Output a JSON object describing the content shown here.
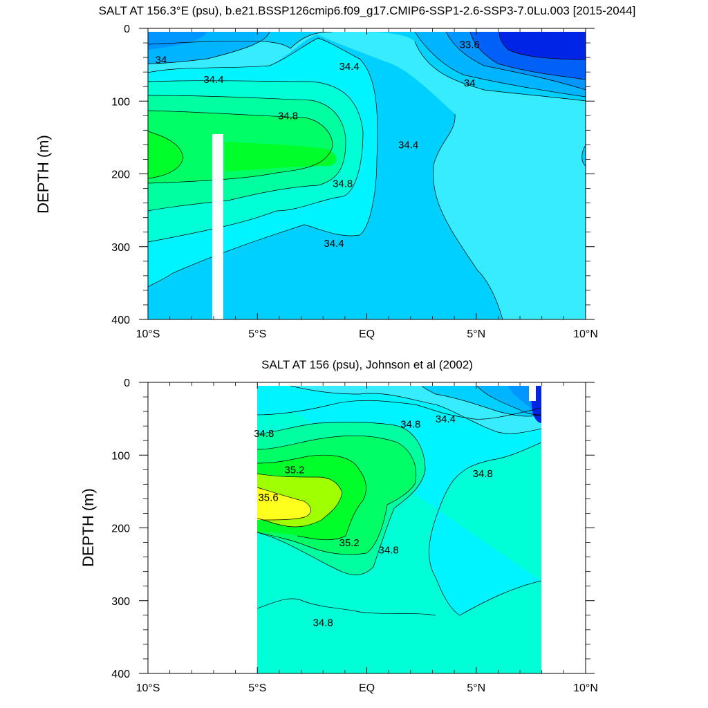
{
  "chart_data": [
    {
      "type": "contour",
      "title": "SALT AT 156.3°E (psu), b.e21.BSSP126cmip6.f09_g17.CMIP6-SSP1-2.6-SSP3-7.0Lu.003 [2015-2044]",
      "ylabel": "DEPTH (m)",
      "xlabel": "",
      "x_ticks": [
        "10°S",
        "5°S",
        "EQ",
        "5°N",
        "10°N"
      ],
      "x_tick_values": [
        -10,
        -5,
        0,
        5,
        10
      ],
      "xlim": [
        -10,
        10
      ],
      "y_ticks": [
        "0",
        "100",
        "200",
        "300",
        "400"
      ],
      "y_tick_values": [
        0,
        100,
        200,
        300,
        400
      ],
      "ylim": [
        0,
        400
      ],
      "y_inverted": true,
      "data_extent_lat": [
        -10,
        10
      ],
      "data_extent_depth": [
        5,
        400
      ],
      "missing_columns": [
        {
          "lat": [
            -7.1,
            -6.6
          ],
          "depth": [
            145,
            400
          ]
        }
      ],
      "contour_labels": [
        {
          "text": "34",
          "lat": -9.4,
          "depth": 48
        },
        {
          "text": "34.4",
          "lat": -7.0,
          "depth": 75
        },
        {
          "text": "34.8",
          "lat": -3.6,
          "depth": 125
        },
        {
          "text": "34.4",
          "lat": -0.8,
          "depth": 57
        },
        {
          "text": "33.6",
          "lat": 4.7,
          "depth": 27
        },
        {
          "text": "34",
          "lat": 4.7,
          "depth": 80
        },
        {
          "text": "34.4",
          "lat": 1.9,
          "depth": 165
        },
        {
          "text": "34.8",
          "lat": -1.1,
          "depth": 218
        },
        {
          "text": "34.4",
          "lat": -1.5,
          "depth": 300
        }
      ]
    },
    {
      "type": "contour",
      "title": "SALT AT 156 (psu), Johnson et al (2002)",
      "ylabel": "DEPTH (m)",
      "xlabel": "",
      "x_ticks": [
        "10°S",
        "5°S",
        "EQ",
        "5°N",
        "10°N"
      ],
      "x_tick_values": [
        -10,
        -5,
        0,
        5,
        10
      ],
      "xlim": [
        -10,
        10
      ],
      "y_ticks": [
        "0",
        "100",
        "200",
        "300",
        "400"
      ],
      "y_tick_values": [
        0,
        100,
        200,
        300,
        400
      ],
      "ylim": [
        0,
        400
      ],
      "y_inverted": true,
      "data_extent_lat": [
        -5,
        8
      ],
      "data_extent_depth": [
        5,
        400
      ],
      "contour_labels": [
        {
          "text": "34.8",
          "lat": -4.7,
          "depth": 75
        },
        {
          "text": "35.2",
          "lat": -3.3,
          "depth": 125
        },
        {
          "text": "35.6",
          "lat": -4.5,
          "depth": 163
        },
        {
          "text": "34.8",
          "lat": 2.0,
          "depth": 62
        },
        {
          "text": "34.4",
          "lat": 3.6,
          "depth": 55
        },
        {
          "text": "34.8",
          "lat": 5.3,
          "depth": 130
        },
        {
          "text": "35.2",
          "lat": -0.8,
          "depth": 225
        },
        {
          "text": "34.8",
          "lat": 1.0,
          "depth": 235
        },
        {
          "text": "34.8",
          "lat": -2.0,
          "depth": 335
        }
      ]
    }
  ],
  "colors": {
    "c_33_4": "#0024e6",
    "c_33_6": "#0060f8",
    "c_33_8": "#0096ff",
    "c_34_0": "#00b4ff",
    "c_34_2": "#00d0ff",
    "c_34_4": "#38ecff",
    "c_34_6": "#00f4ff",
    "c_34_8": "#00ffd6",
    "c_35_0": "#00ffa0",
    "c_35_2": "#00ff66",
    "c_35_4": "#00ff2a",
    "c_35_6": "#a0ff00",
    "c_35_8": "#ffff1e",
    "gap": "#ffffff"
  }
}
